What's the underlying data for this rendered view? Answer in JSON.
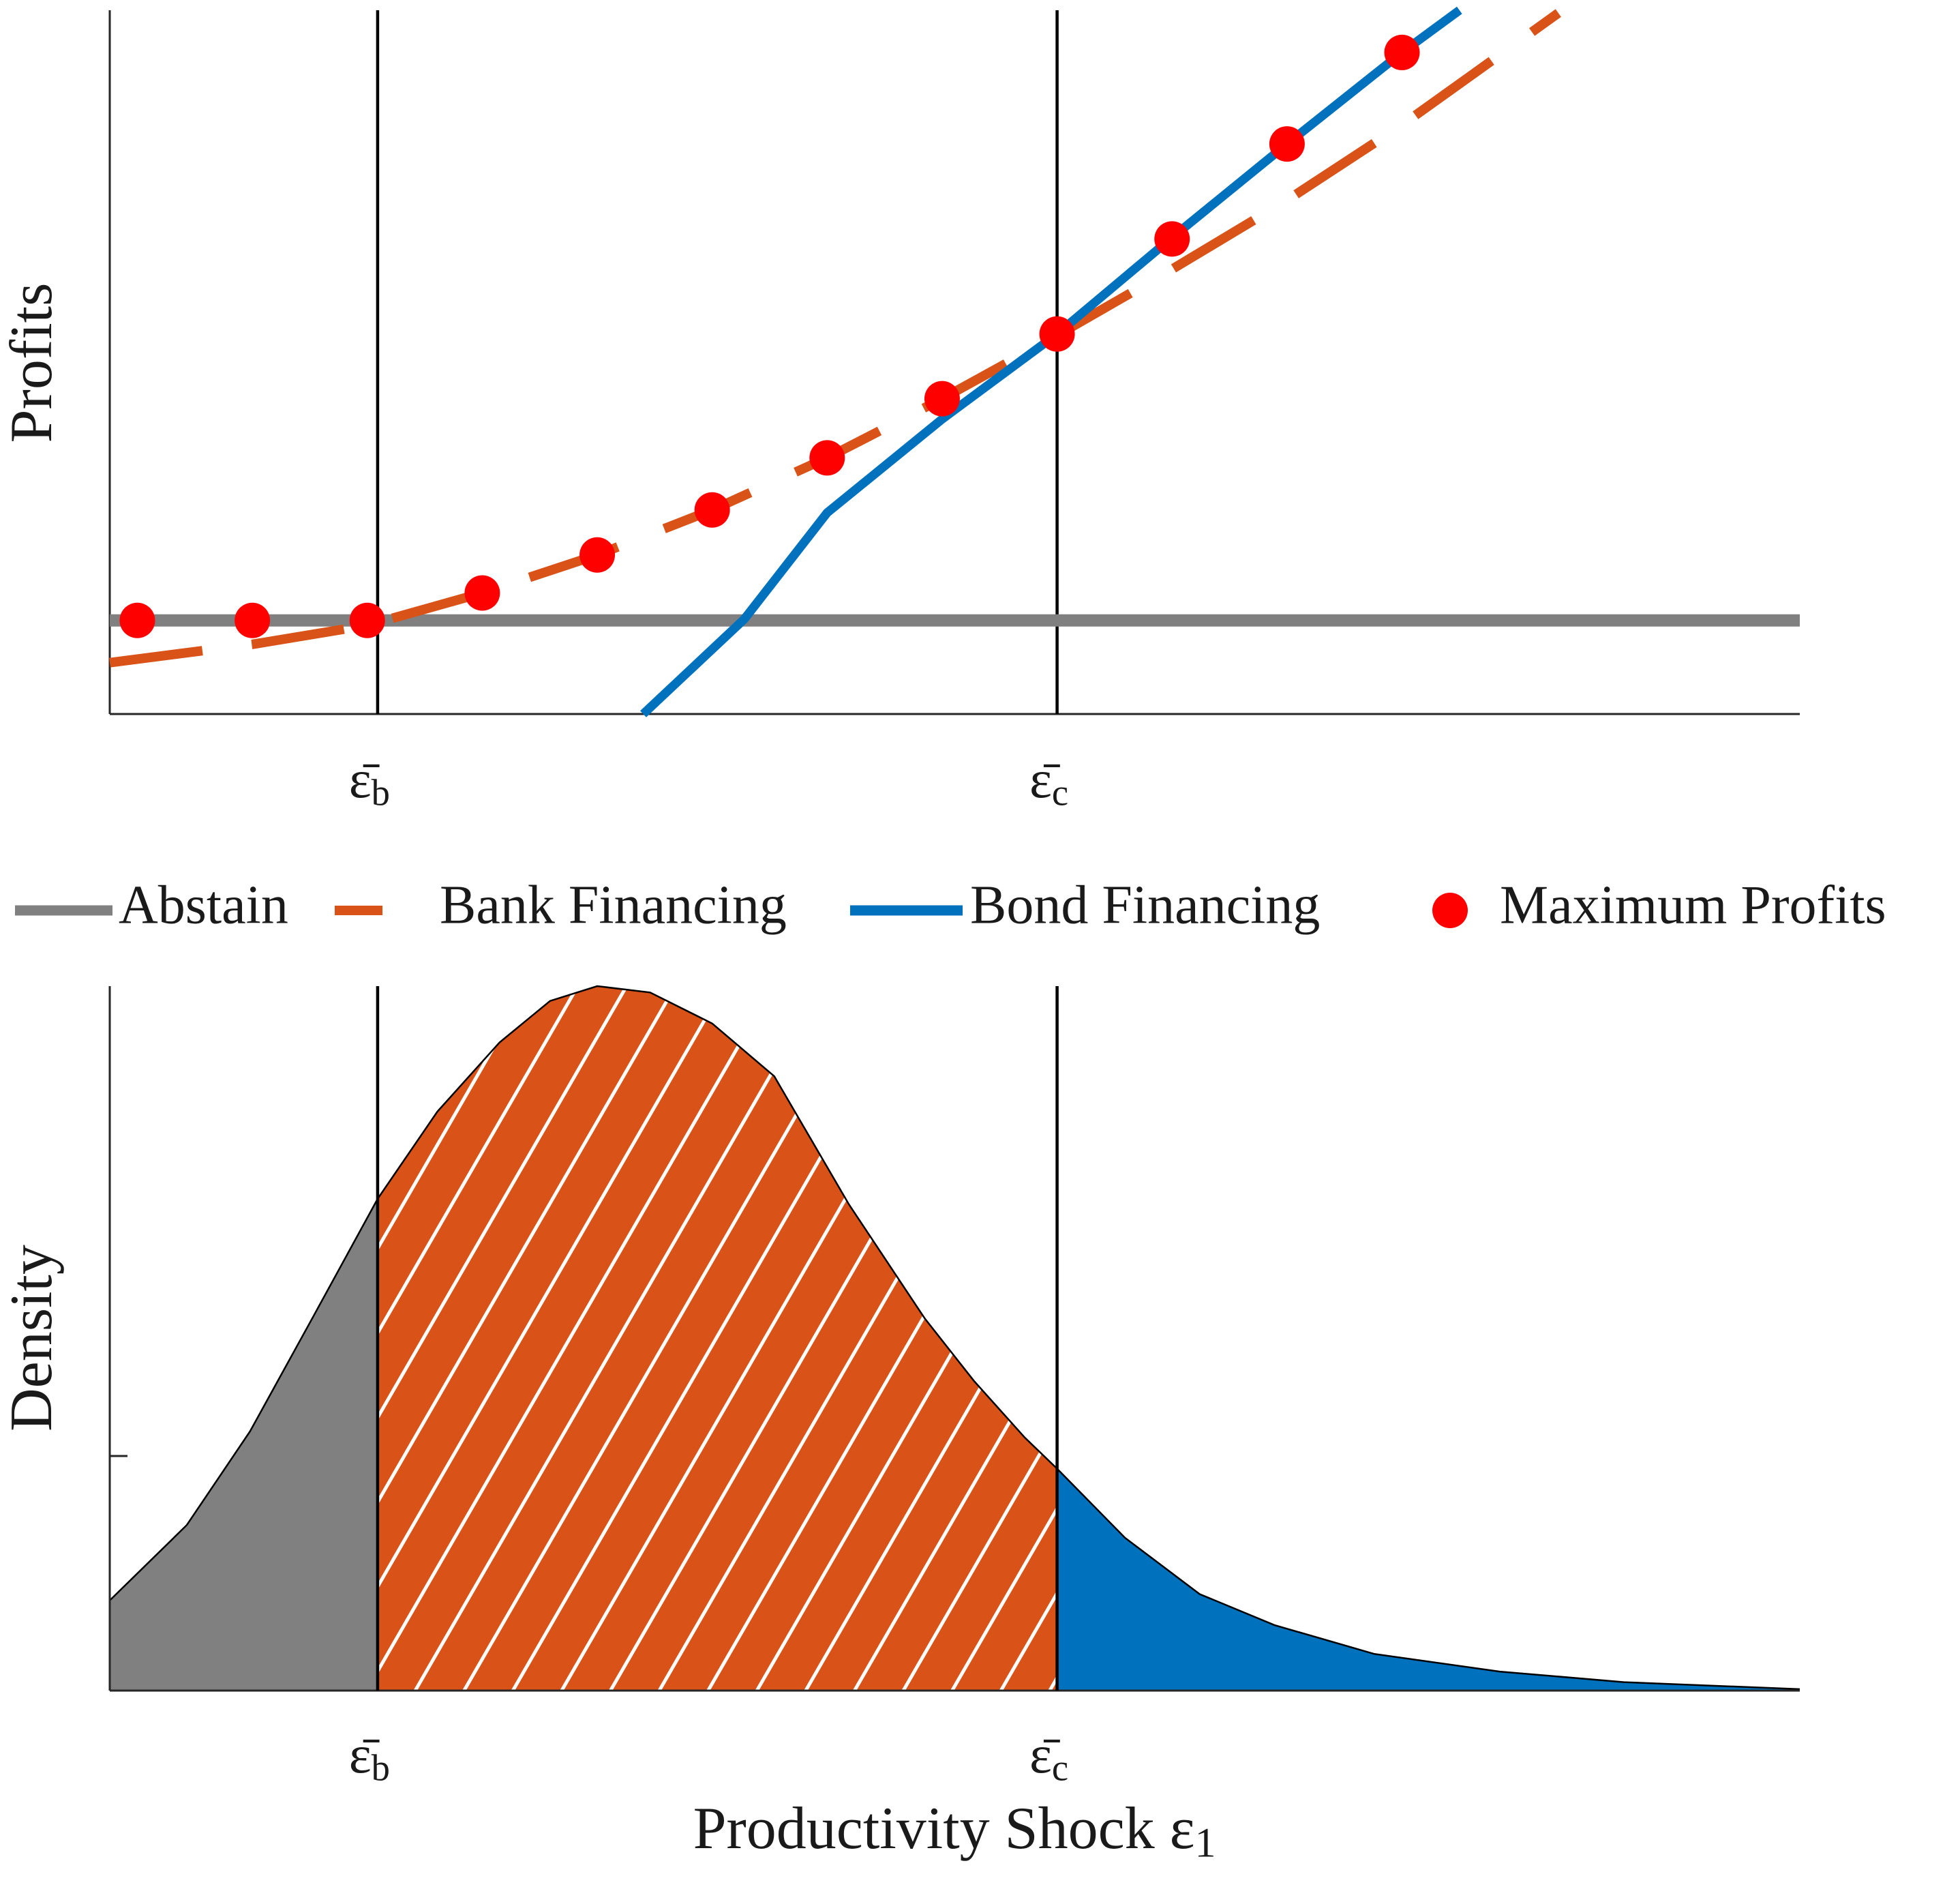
{
  "chart_data": [
    {
      "type": "line",
      "ylabel": "Profits",
      "xlim": [
        0,
        14.7
      ],
      "ylim": [
        0,
        10
      ],
      "xticks": [
        {
          "value": 2.33,
          "label": "ε̄b"
        },
        {
          "value": 8.24,
          "label": "ε̄c"
        }
      ],
      "legend": "bottom",
      "series": [
        {
          "name": "Abstain",
          "color": "#808080",
          "x": [
            0,
            14.7
          ],
          "values": [
            1.33,
            1.33
          ]
        },
        {
          "name": "Bank Financing",
          "color": "#d95319",
          "dash": true,
          "x": [
            0,
            1.24,
            2.24,
            3.24,
            4.24,
            5.24,
            6.24,
            7.24,
            8.24,
            9.24,
            10.24,
            11.24,
            12.6
          ],
          "values": [
            0.73,
            0.99,
            1.26,
            1.72,
            2.26,
            2.9,
            3.64,
            4.48,
            5.38,
            6.32,
            7.3,
            8.37,
            9.96
          ]
        },
        {
          "name": "Bond Financing",
          "color": "#0072bd",
          "x": [
            4.64,
            5.52,
            6.24,
            7.24,
            8.24,
            9.24,
            10.24,
            11.24,
            11.74
          ],
          "values": [
            0,
            1.35,
            2.86,
            4.19,
            5.4,
            6.77,
            8.1,
            9.4,
            10
          ]
        },
        {
          "name": "Maximum Profits",
          "color": "#ff0000",
          "mode": "markers",
          "x": [
            0.24,
            1.24,
            2.24,
            3.24,
            4.24,
            5.24,
            6.24,
            7.24,
            8.24,
            9.24,
            10.24,
            11.24
          ],
          "values": [
            1.33,
            1.33,
            1.33,
            1.72,
            2.26,
            2.9,
            3.64,
            4.48,
            5.4,
            6.75,
            8.1,
            9.4
          ]
        }
      ]
    },
    {
      "type": "area",
      "ylabel": "Density",
      "xlabel": "Productivity Shock ε1",
      "xlim": [
        0,
        14.7
      ],
      "ylim": [
        0,
        10
      ],
      "yticks": [
        3.33
      ],
      "xticks": [
        {
          "value": 2.33,
          "label": "ε̄b"
        },
        {
          "value": 8.24,
          "label": "ε̄c"
        }
      ],
      "x": [
        0,
        0.67,
        1.22,
        1.76,
        2.33,
        2.85,
        3.39,
        3.83,
        4.24,
        4.7,
        5.24,
        5.78,
        6.43,
        7.09,
        7.52,
        7.96,
        8.24,
        8.83,
        9.48,
        10.13,
        11.0,
        12.09,
        13.17,
        14.7
      ],
      "values": [
        1.28,
        2.35,
        3.68,
        5.28,
        6.98,
        8.22,
        9.2,
        9.79,
        10.0,
        9.91,
        9.47,
        8.72,
        6.9,
        5.28,
        4.39,
        3.59,
        3.15,
        2.17,
        1.37,
        0.93,
        0.52,
        0.27,
        0.12,
        0.02
      ],
      "fills": [
        "#808080",
        "#d95319",
        "#0072bd"
      ],
      "hatch": "#ffffff"
    }
  ]
}
